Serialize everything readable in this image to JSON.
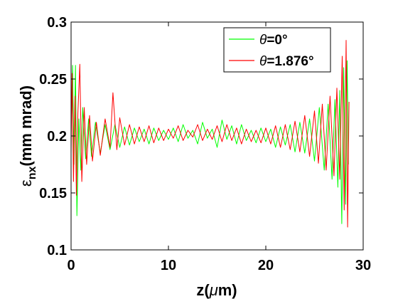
{
  "chart_data": {
    "type": "line",
    "x_range": [
      0,
      30
    ],
    "y_range": [
      0.1,
      0.3
    ],
    "x_ticks": [
      0,
      10,
      20,
      30
    ],
    "y_ticks": [
      0.1,
      0.15,
      0.2,
      0.25,
      0.3
    ],
    "x_tick_labels": [
      "0",
      "10",
      "20",
      "30"
    ],
    "y_tick_labels": [
      "0.1",
      "0.15",
      "0.2",
      "0.25",
      "0.3"
    ],
    "xlabel": {
      "main": "z(",
      "greek": "μ",
      "rest": "m)"
    },
    "ylabel": {
      "symbol": "ε",
      "subscript": "nx",
      "rest": "(mm mrad)"
    },
    "grid": false,
    "legend_position": "top-right",
    "series": [
      {
        "name": "θ=0°",
        "legend": {
          "greek": "θ",
          "rest": "=0°"
        },
        "color": "#00ff00",
        "x": [
          0,
          0.15,
          0.3,
          0.45,
          0.6,
          0.8,
          1.0,
          1.2,
          1.5,
          1.8,
          2.1,
          2.5,
          3.0,
          3.5,
          4.0,
          4.5,
          5.0,
          5.5,
          6.0,
          6.5,
          7.0,
          7.5,
          8.0,
          8.5,
          9.0,
          9.5,
          10.0,
          10.5,
          11.0,
          11.5,
          12.0,
          12.5,
          13.0,
          13.5,
          14.0,
          14.5,
          15.0,
          15.5,
          16.0,
          16.5,
          17.0,
          17.5,
          18.0,
          18.5,
          19.0,
          19.5,
          20.0,
          20.5,
          21.0,
          21.5,
          22.0,
          22.5,
          23.0,
          23.5,
          24.0,
          24.5,
          25.0,
          25.5,
          26.0,
          26.4,
          26.8,
          27.1,
          27.4,
          27.6,
          27.8,
          28.0,
          28.2,
          28.35,
          28.5
        ],
        "y": [
          0.205,
          0.262,
          0.175,
          0.262,
          0.13,
          0.215,
          0.17,
          0.225,
          0.18,
          0.215,
          0.182,
          0.212,
          0.185,
          0.21,
          0.188,
          0.21,
          0.19,
          0.208,
          0.192,
          0.207,
          0.195,
          0.206,
          0.193,
          0.207,
          0.196,
          0.205,
          0.197,
          0.207,
          0.195,
          0.21,
          0.198,
          0.205,
          0.193,
          0.212,
          0.198,
          0.206,
          0.19,
          0.214,
          0.197,
          0.209,
          0.193,
          0.21,
          0.196,
          0.205,
          0.194,
          0.207,
          0.195,
          0.206,
          0.19,
          0.208,
          0.192,
          0.21,
          0.186,
          0.212,
          0.185,
          0.215,
          0.178,
          0.225,
          0.17,
          0.228,
          0.162,
          0.232,
          0.155,
          0.24,
          0.123,
          0.26,
          0.14,
          0.266,
          0.175
        ]
      },
      {
        "name": "θ=1.876°",
        "legend": {
          "greek": "θ",
          "rest": "=1.876°"
        },
        "color": "#ff0000",
        "x": [
          0,
          0.1,
          0.25,
          0.4,
          0.55,
          0.7,
          0.9,
          1.1,
          1.35,
          1.6,
          1.9,
          2.2,
          2.6,
          3.0,
          3.5,
          4.0,
          4.3,
          4.7,
          5.0,
          5.5,
          6.0,
          6.5,
          7.0,
          7.5,
          8.0,
          8.5,
          9.0,
          9.5,
          10.0,
          10.5,
          11.0,
          11.5,
          12.0,
          12.5,
          13.0,
          13.5,
          14.0,
          14.5,
          15.0,
          15.5,
          16.0,
          16.5,
          17.0,
          17.5,
          18.0,
          18.5,
          19.0,
          19.5,
          20.0,
          20.5,
          21.0,
          21.5,
          22.0,
          22.5,
          23.0,
          23.5,
          24.0,
          24.5,
          25.0,
          25.4,
          25.8,
          26.2,
          26.6,
          27.0,
          27.3,
          27.6,
          27.85,
          28.05,
          28.25,
          28.4,
          28.55
        ],
        "y": [
          0.185,
          0.255,
          0.16,
          0.235,
          0.148,
          0.22,
          0.263,
          0.16,
          0.225,
          0.175,
          0.218,
          0.178,
          0.212,
          0.183,
          0.215,
          0.19,
          0.238,
          0.188,
          0.216,
          0.192,
          0.21,
          0.193,
          0.208,
          0.195,
          0.209,
          0.194,
          0.207,
          0.196,
          0.206,
          0.198,
          0.209,
          0.196,
          0.205,
          0.199,
          0.21,
          0.196,
          0.206,
          0.197,
          0.209,
          0.195,
          0.21,
          0.196,
          0.207,
          0.193,
          0.206,
          0.195,
          0.205,
          0.194,
          0.207,
          0.193,
          0.209,
          0.19,
          0.21,
          0.188,
          0.213,
          0.186,
          0.218,
          0.182,
          0.222,
          0.176,
          0.228,
          0.17,
          0.235,
          0.165,
          0.242,
          0.162,
          0.27,
          0.135,
          0.284,
          0.12,
          0.23
        ]
      }
    ]
  }
}
